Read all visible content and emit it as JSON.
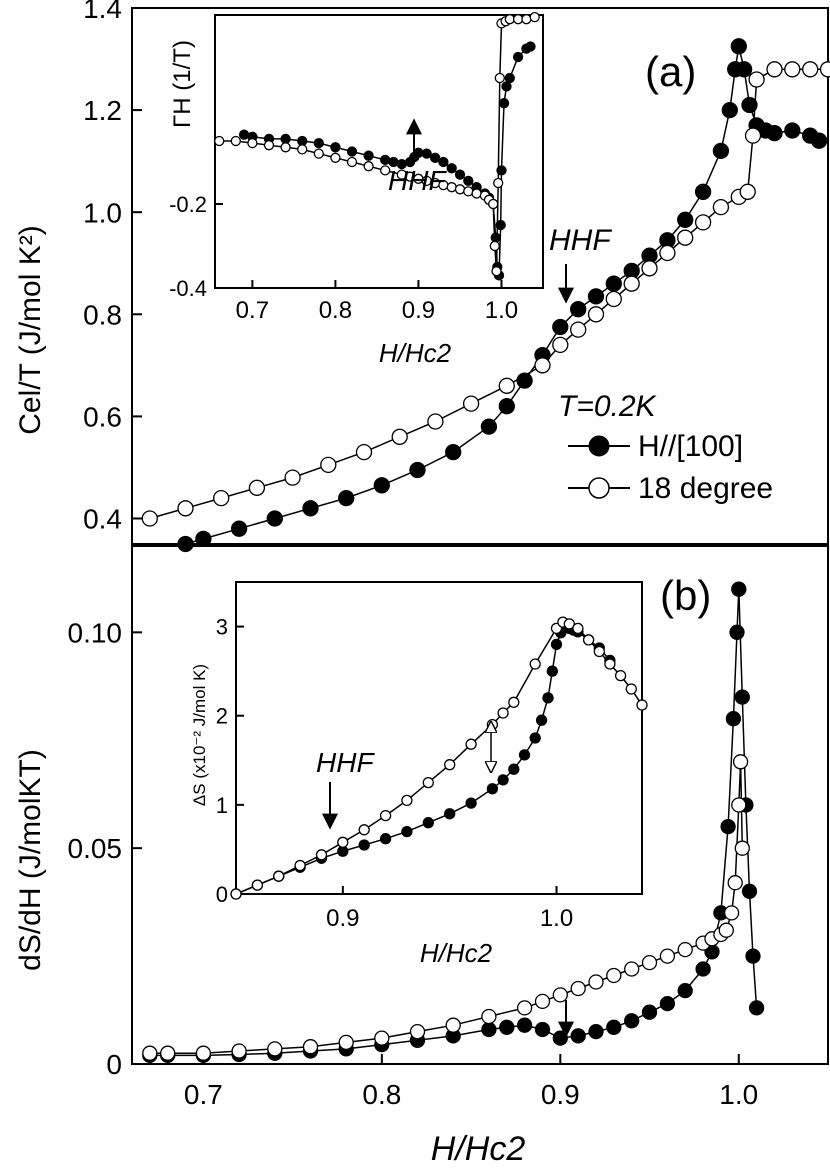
{
  "figure": {
    "panel_a_label": "(a)",
    "panel_b_label": "(b)",
    "shared_xlabel": "H/Hc2"
  },
  "chart_data": [
    {
      "id": "a",
      "type": "scatter",
      "panel_label": "(a)",
      "xlabel": "H/Hc2",
      "ylabel": "Cel/T (J/mol K²)",
      "xlim": [
        0.66,
        1.05
      ],
      "ylim": [
        0.35,
        1.4
      ],
      "yticks": [
        "0.4",
        "0.6",
        "0.8",
        "1.0",
        "1.2",
        "1.4"
      ],
      "legend": {
        "title": "T=0.2K",
        "entries": [
          "H//[100]",
          "18 degree"
        ],
        "position": "right-middle"
      },
      "annotations": [
        {
          "text": "HHF",
          "x": 0.899,
          "arrow": "down"
        }
      ],
      "series": [
        {
          "name": "H//[100]",
          "marker": "filled",
          "x": [
            0.69,
            0.7,
            0.72,
            0.74,
            0.76,
            0.78,
            0.8,
            0.82,
            0.84,
            0.86,
            0.87,
            0.88,
            0.89,
            0.9,
            0.91,
            0.92,
            0.93,
            0.94,
            0.95,
            0.96,
            0.97,
            0.98,
            0.99,
            0.995,
            0.998,
            1.0,
            1.003,
            1.006,
            1.01,
            1.015,
            1.02,
            1.03,
            1.04,
            1.045
          ],
          "y": [
            0.35,
            0.36,
            0.38,
            0.4,
            0.42,
            0.44,
            0.465,
            0.495,
            0.53,
            0.58,
            0.62,
            0.67,
            0.72,
            0.775,
            0.81,
            0.835,
            0.86,
            0.885,
            0.915,
            0.945,
            0.985,
            1.04,
            1.12,
            1.2,
            1.28,
            1.325,
            1.28,
            1.21,
            1.17,
            1.16,
            1.155,
            1.16,
            1.15,
            1.14
          ]
        },
        {
          "name": "18 degree",
          "marker": "open",
          "x": [
            0.67,
            0.69,
            0.71,
            0.73,
            0.75,
            0.77,
            0.79,
            0.81,
            0.83,
            0.85,
            0.87,
            0.89,
            0.9,
            0.91,
            0.92,
            0.93,
            0.94,
            0.95,
            0.96,
            0.97,
            0.98,
            0.99,
            1.0,
            1.005,
            1.008,
            1.01,
            1.02,
            1.03,
            1.04,
            1.05
          ],
          "y": [
            0.4,
            0.42,
            0.44,
            0.46,
            0.48,
            0.505,
            0.53,
            0.56,
            0.59,
            0.625,
            0.66,
            0.7,
            0.74,
            0.77,
            0.8,
            0.83,
            0.86,
            0.89,
            0.92,
            0.95,
            0.98,
            1.01,
            1.03,
            1.04,
            1.15,
            1.26,
            1.28,
            1.28,
            1.28,
            1.28
          ]
        }
      ]
    },
    {
      "id": "a-inset",
      "type": "scatter",
      "xlabel": "H/Hc2",
      "ylabel": "ΓH (1/T)",
      "xlim": [
        0.655,
        1.05
      ],
      "ylim": [
        -0.4,
        0.25
      ],
      "xticks": [
        "0.7",
        "0.8",
        "0.9",
        "1.0"
      ],
      "yticks": [
        "-0.4",
        "-0.2"
      ],
      "annotations": [
        {
          "text": "HHF",
          "x": 0.899,
          "arrow": "up"
        }
      ],
      "series": [
        {
          "name": "H//[100]",
          "marker": "filled",
          "x": [
            0.69,
            0.7,
            0.72,
            0.74,
            0.76,
            0.78,
            0.8,
            0.82,
            0.84,
            0.86,
            0.87,
            0.88,
            0.89,
            0.895,
            0.9,
            0.91,
            0.92,
            0.93,
            0.94,
            0.95,
            0.96,
            0.97,
            0.98,
            0.985,
            0.99,
            0.993,
            0.995,
            0.997,
            0.999,
            1.0,
            1.003,
            1.006,
            1.01,
            1.02,
            1.03,
            1.035
          ],
          "y": [
            -0.035,
            -0.04,
            -0.045,
            -0.045,
            -0.05,
            -0.055,
            -0.065,
            -0.075,
            -0.085,
            -0.095,
            -0.1,
            -0.105,
            -0.1,
            -0.088,
            -0.078,
            -0.08,
            -0.09,
            -0.1,
            -0.115,
            -0.13,
            -0.145,
            -0.16,
            -0.175,
            -0.185,
            -0.2,
            -0.28,
            -0.35,
            -0.37,
            -0.25,
            -0.12,
            0.04,
            0.08,
            0.1,
            0.15,
            0.17,
            0.175
          ]
        },
        {
          "name": "18 degree",
          "marker": "open",
          "x": [
            0.66,
            0.68,
            0.7,
            0.72,
            0.74,
            0.76,
            0.78,
            0.8,
            0.82,
            0.84,
            0.86,
            0.88,
            0.89,
            0.9,
            0.91,
            0.92,
            0.93,
            0.94,
            0.95,
            0.96,
            0.97,
            0.98,
            0.985,
            0.99,
            0.992,
            0.994,
            0.996,
            0.998,
            1.0,
            1.005,
            1.01,
            1.02,
            1.03,
            1.04
          ],
          "y": [
            -0.05,
            -0.05,
            -0.055,
            -0.06,
            -0.065,
            -0.07,
            -0.08,
            -0.09,
            -0.1,
            -0.11,
            -0.12,
            -0.13,
            -0.135,
            -0.14,
            -0.145,
            -0.15,
            -0.155,
            -0.16,
            -0.165,
            -0.17,
            -0.175,
            -0.18,
            -0.19,
            -0.2,
            -0.3,
            -0.36,
            -0.15,
            0.1,
            0.23,
            0.235,
            0.24,
            0.24,
            0.24,
            0.245
          ]
        }
      ]
    },
    {
      "id": "b",
      "type": "scatter",
      "panel_label": "(b)",
      "xlabel": "H/Hc2",
      "ylabel": "dS/dH (J/molKT)",
      "xlim": [
        0.66,
        1.05
      ],
      "ylim": [
        0,
        0.12
      ],
      "xticks": [
        "0.7",
        "0.8",
        "0.9",
        "1.0"
      ],
      "yticks": [
        "0",
        "0.05",
        "0.10"
      ],
      "annotations": [
        {
          "text": "",
          "x": 0.898,
          "arrow": "down"
        }
      ],
      "series": [
        {
          "name": "H//[100]",
          "marker": "filled",
          "x": [
            0.67,
            0.68,
            0.7,
            0.72,
            0.74,
            0.76,
            0.78,
            0.8,
            0.82,
            0.84,
            0.86,
            0.87,
            0.88,
            0.89,
            0.9,
            0.91,
            0.92,
            0.93,
            0.94,
            0.95,
            0.96,
            0.97,
            0.98,
            0.985,
            0.99,
            0.994,
            0.997,
            0.999,
            1.0,
            1.002,
            1.004,
            1.006,
            1.008,
            1.01
          ],
          "y": [
            0.002,
            0.002,
            0.002,
            0.0022,
            0.0025,
            0.003,
            0.0035,
            0.0045,
            0.0055,
            0.0065,
            0.008,
            0.0085,
            0.009,
            0.008,
            0.006,
            0.0065,
            0.0075,
            0.0085,
            0.01,
            0.012,
            0.014,
            0.017,
            0.022,
            0.026,
            0.035,
            0.055,
            0.08,
            0.1,
            0.11,
            0.085,
            0.06,
            0.04,
            0.025,
            0.013
          ]
        },
        {
          "name": "18 degree",
          "marker": "open",
          "x": [
            0.67,
            0.68,
            0.7,
            0.72,
            0.74,
            0.76,
            0.78,
            0.8,
            0.82,
            0.84,
            0.86,
            0.88,
            0.89,
            0.9,
            0.91,
            0.92,
            0.93,
            0.94,
            0.95,
            0.96,
            0.97,
            0.98,
            0.985,
            0.99,
            0.993,
            0.996,
            0.998,
            1.0,
            1.001,
            1.002
          ],
          "y": [
            0.0025,
            0.0025,
            0.0025,
            0.003,
            0.0035,
            0.004,
            0.005,
            0.006,
            0.0075,
            0.009,
            0.011,
            0.013,
            0.0145,
            0.016,
            0.0175,
            0.019,
            0.0205,
            0.022,
            0.0235,
            0.025,
            0.0265,
            0.028,
            0.029,
            0.03,
            0.031,
            0.035,
            0.042,
            0.06,
            0.07,
            0.05
          ]
        }
      ]
    },
    {
      "id": "b-inset",
      "type": "scatter",
      "xlabel": "H/Hc2",
      "ylabel": "ΔS (x10⁻² J/mol K)",
      "xlim": [
        0.85,
        1.04
      ],
      "ylim": [
        0,
        3.5
      ],
      "xticks": [
        "0.9",
        "1.0"
      ],
      "yticks": [
        "0",
        "1",
        "2",
        "3"
      ],
      "annotations": [
        {
          "text": "HHF",
          "x": 0.895,
          "arrow": "down"
        },
        {
          "text": "",
          "x": 0.975,
          "arrow": "double"
        }
      ],
      "series": [
        {
          "name": "H//[100]",
          "marker": "filled",
          "x": [
            0.85,
            0.86,
            0.87,
            0.88,
            0.89,
            0.9,
            0.91,
            0.92,
            0.93,
            0.94,
            0.95,
            0.96,
            0.97,
            0.975,
            0.98,
            0.985,
            0.99,
            0.993,
            0.996,
            0.998,
            1.0,
            1.002,
            1.004,
            1.006,
            1.008,
            1.01,
            1.015,
            1.02,
            1.025
          ],
          "y": [
            0.0,
            0.1,
            0.2,
            0.3,
            0.4,
            0.48,
            0.55,
            0.62,
            0.7,
            0.8,
            0.9,
            1.02,
            1.18,
            1.28,
            1.4,
            1.56,
            1.75,
            1.95,
            2.2,
            2.5,
            2.8,
            2.93,
            3.0,
            2.98,
            2.96,
            2.94,
            2.85,
            2.76,
            2.62
          ]
        },
        {
          "name": "18 degree",
          "marker": "open",
          "x": [
            0.85,
            0.86,
            0.87,
            0.88,
            0.89,
            0.9,
            0.91,
            0.92,
            0.93,
            0.94,
            0.95,
            0.96,
            0.97,
            0.975,
            0.98,
            0.99,
            1.0,
            1.003,
            1.006,
            1.01,
            1.015,
            1.02,
            1.025,
            1.03,
            1.035,
            1.04
          ],
          "y": [
            0.0,
            0.1,
            0.2,
            0.32,
            0.44,
            0.58,
            0.72,
            0.88,
            1.05,
            1.25,
            1.45,
            1.68,
            1.9,
            2.03,
            2.15,
            2.58,
            2.98,
            3.05,
            3.03,
            2.98,
            2.85,
            2.72,
            2.58,
            2.45,
            2.3,
            2.12
          ]
        }
      ]
    }
  ]
}
